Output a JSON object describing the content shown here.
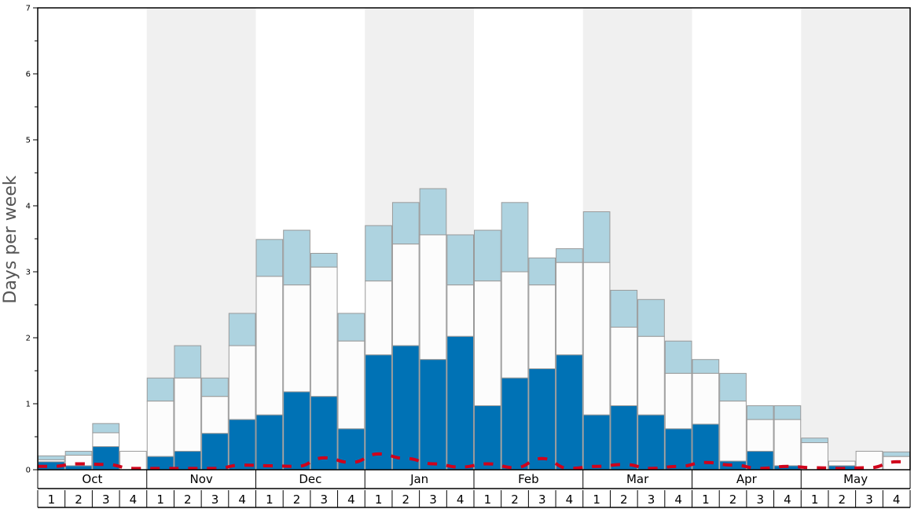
{
  "chart_data": {
    "type": "bar",
    "ylabel": "Days per week",
    "ylim": [
      0,
      7
    ],
    "yticks": [
      0,
      1,
      2,
      3,
      4,
      5,
      6,
      7
    ],
    "months": [
      "Oct",
      "Nov",
      "Dec",
      "Jan",
      "Feb",
      "Mar",
      "Apr",
      "May"
    ],
    "week_labels": [
      "1",
      "2",
      "3",
      "4"
    ],
    "colors": {
      "dark_blue": "#0072b5",
      "white_segment": "#fcfcfc",
      "light_blue": "#aed3e0",
      "dashed_line": "#d0021b",
      "shade": "#f0f0f0",
      "bar_edge": "#9a9a9a"
    },
    "series": [
      {
        "values": [
          0.12,
          0.06,
          0.35,
          0,
          0.2,
          0.28,
          0.55,
          0.76,
          0.83,
          1.18,
          1.11,
          0.62,
          1.74,
          1.88,
          1.67,
          2.02,
          0.97,
          1.39,
          1.53,
          1.74,
          0.83,
          0.97,
          0.83,
          0.62,
          0.69,
          0.13,
          0.28,
          0.06,
          0,
          0.06,
          0,
          0
        ]
      },
      {
        "values": [
          0.15,
          0.22,
          0.56,
          0.28,
          1.04,
          1.39,
          1.11,
          1.88,
          2.93,
          2.8,
          3.07,
          1.95,
          2.86,
          3.42,
          3.56,
          2.8,
          2.86,
          3.0,
          2.8,
          3.14,
          3.14,
          2.16,
          2.02,
          1.46,
          1.46,
          1.04,
          0.76,
          0.76,
          0.41,
          0.13,
          0.28,
          0.2
        ]
      },
      {
        "values": [
          0.21,
          0.28,
          0.7,
          0.28,
          1.39,
          1.88,
          1.39,
          2.37,
          3.49,
          3.63,
          3.28,
          2.37,
          3.7,
          4.05,
          4.26,
          3.56,
          3.63,
          4.05,
          3.21,
          3.35,
          3.91,
          2.72,
          2.58,
          1.95,
          1.67,
          1.46,
          0.97,
          0.97,
          0.48,
          0.13,
          0.28,
          0.27
        ]
      },
      {
        "style": "dashed",
        "values": [
          0.05,
          0.09,
          0.08,
          0.02,
          0.02,
          0.02,
          0.02,
          0.07,
          0.06,
          0.05,
          0.18,
          0.11,
          0.24,
          0.17,
          0.09,
          0.04,
          0.09,
          0.03,
          0.17,
          0.02,
          0.05,
          0.08,
          0.02,
          0.05,
          0.11,
          0.07,
          0.02,
          0.05,
          0.03,
          0.02,
          0.03,
          0.12
        ]
      }
    ]
  }
}
